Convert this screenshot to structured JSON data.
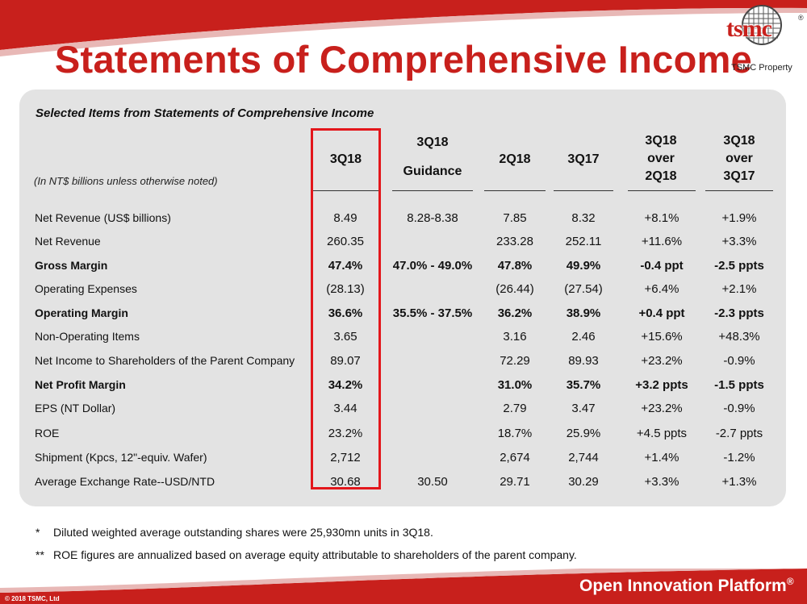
{
  "header": {
    "title": "Statements of Comprehensive Income",
    "logo_text": "tsmc",
    "logo_caption": "TSMC Property"
  },
  "panel": {
    "heading": "Selected Items from Statements of Comprehensive Income",
    "units_note": "(In NT$ billions unless otherwise noted)",
    "columns": [
      {
        "lines": [
          "3Q18"
        ]
      },
      {
        "lines": [
          "3Q18",
          "Guidance"
        ]
      },
      {
        "lines": [
          "2Q18"
        ]
      },
      {
        "lines": [
          "3Q17"
        ]
      },
      {
        "lines": [
          "3Q18",
          "over",
          "2Q18"
        ]
      },
      {
        "lines": [
          "3Q18",
          "over",
          "3Q17"
        ]
      }
    ],
    "highlighted_column": "3Q18",
    "rows": [
      {
        "label": "Net Revenue (US$ billions)",
        "bold": false,
        "cells": [
          "8.49",
          "8.28-8.38",
          "7.85",
          "8.32",
          "+8.1%",
          "+1.9%"
        ]
      },
      {
        "label": "Net Revenue",
        "bold": false,
        "cells": [
          "260.35",
          "",
          "233.28",
          "252.11",
          "+11.6%",
          "+3.3%"
        ]
      },
      {
        "label": "Gross Margin",
        "bold": true,
        "cells": [
          "47.4%",
          "47.0% - 49.0%",
          "47.8%",
          "49.9%",
          "-0.4 ppt",
          "-2.5 ppts"
        ]
      },
      {
        "label": "Operating Expenses",
        "bold": false,
        "cells": [
          "(28.13)",
          "",
          "(26.44)",
          "(27.54)",
          "+6.4%",
          "+2.1%"
        ]
      },
      {
        "label": "Operating Margin",
        "bold": true,
        "cells": [
          "36.6%",
          "35.5% - 37.5%",
          "36.2%",
          "38.9%",
          "+0.4 ppt",
          "-2.3 ppts"
        ]
      },
      {
        "label": "Non-Operating Items",
        "bold": false,
        "cells": [
          "3.65",
          "",
          "3.16",
          "2.46",
          "+15.6%",
          "+48.3%"
        ]
      },
      {
        "label": "Net Income to Shareholders of the Parent Company",
        "bold": false,
        "cells": [
          "89.07",
          "",
          "72.29",
          "89.93",
          "+23.2%",
          "-0.9%"
        ]
      },
      {
        "label": "Net Profit Margin",
        "bold": true,
        "cells": [
          "34.2%",
          "",
          "31.0%",
          "35.7%",
          "+3.2 ppts",
          "-1.5 ppts"
        ]
      },
      {
        "label": "EPS (NT Dollar)",
        "bold": false,
        "cells": [
          "3.44",
          "",
          "2.79",
          "3.47",
          "+23.2%",
          "-0.9%"
        ]
      },
      {
        "label": "ROE",
        "bold": false,
        "cells": [
          "23.2%",
          "",
          "18.7%",
          "25.9%",
          "+4.5 ppts",
          "-2.7 ppts"
        ]
      },
      {
        "label": "Shipment (Kpcs, 12\"-equiv. Wafer)",
        "bold": false,
        "cells": [
          "2,712",
          "",
          "2,674",
          "2,744",
          "+1.4%",
          "-1.2%"
        ]
      },
      {
        "label": "Average Exchange Rate--USD/NTD",
        "bold": false,
        "cells": [
          "30.68",
          "30.50",
          "29.71",
          "30.29",
          "+3.3%",
          "+1.3%"
        ]
      }
    ]
  },
  "footnotes": [
    {
      "mark": "*",
      "text": "Diluted weighted average outstanding shares were 25,930mn units in 3Q18."
    },
    {
      "mark": "**",
      "text": "ROE figures are annualized based on average equity attributable to shareholders of the parent company."
    }
  ],
  "footer": {
    "copyright": "© 2018 TSMC, Ltd",
    "platform": "Open Innovation Platform",
    "platform_reg": "®"
  },
  "colors": {
    "accent_red": "#c8201c",
    "highlight_border": "#e3161b",
    "panel_gray": "#e3e3e3"
  }
}
